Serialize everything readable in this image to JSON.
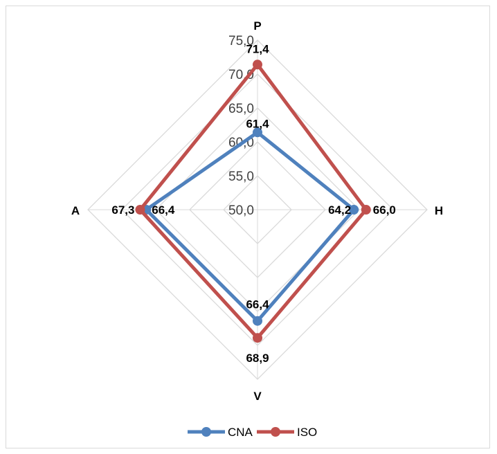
{
  "chart_data": {
    "type": "radar",
    "title": "",
    "axes": [
      "P",
      "H",
      "V",
      "A"
    ],
    "ticks": [
      "50,0",
      "55,0",
      "60,0",
      "65,0",
      "70,0",
      "75,0"
    ],
    "range": [
      50,
      75
    ],
    "grid": true,
    "legend_position": "bottom",
    "series": [
      {
        "name": "CNA",
        "color": "#4f81bd",
        "values": [
          61.4,
          64.2,
          66.4,
          66.4
        ],
        "labels": [
          "61,4",
          "64,2",
          "66,4",
          "66,4"
        ]
      },
      {
        "name": "ISO",
        "color": "#c0504d",
        "values": [
          71.4,
          66.0,
          68.9,
          67.3
        ],
        "labels": [
          "71,4",
          "66,0",
          "68,9",
          "67,3"
        ]
      }
    ]
  }
}
